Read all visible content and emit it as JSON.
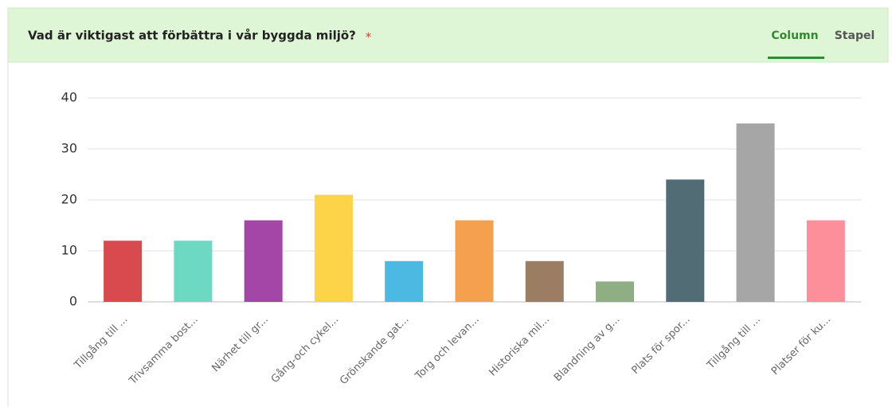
{
  "header": {
    "title": "Vad är viktigast att förbättra i vår byggda miljö?",
    "required": "*",
    "tabs": [
      "Column",
      "Stapel"
    ]
  },
  "chart_data": {
    "type": "bar",
    "categories": [
      "Tillgång till ...",
      "Trivsamma bost...",
      "Närhet till gr...",
      "Gång-och cykel...",
      "Grönskande gat...",
      "Torg och levan...",
      "Historiska mil...",
      "Blandning av g...",
      "Plats för spor...",
      "Tillgång till ...",
      "Platser för ku..."
    ],
    "values": [
      12,
      12,
      16,
      21,
      8,
      16,
      8,
      4,
      24,
      35,
      16
    ],
    "colors": [
      "#d94a4f",
      "#6dd9c2",
      "#a346a8",
      "#fdd447",
      "#4cb9e2",
      "#f5a04f",
      "#9b7d63",
      "#8fae83",
      "#526c75",
      "#a6a6a6",
      "#fd8f9a"
    ],
    "ylim": [
      0,
      40
    ],
    "yticks": [
      0,
      10,
      20,
      30,
      40
    ],
    "grid": true
  }
}
